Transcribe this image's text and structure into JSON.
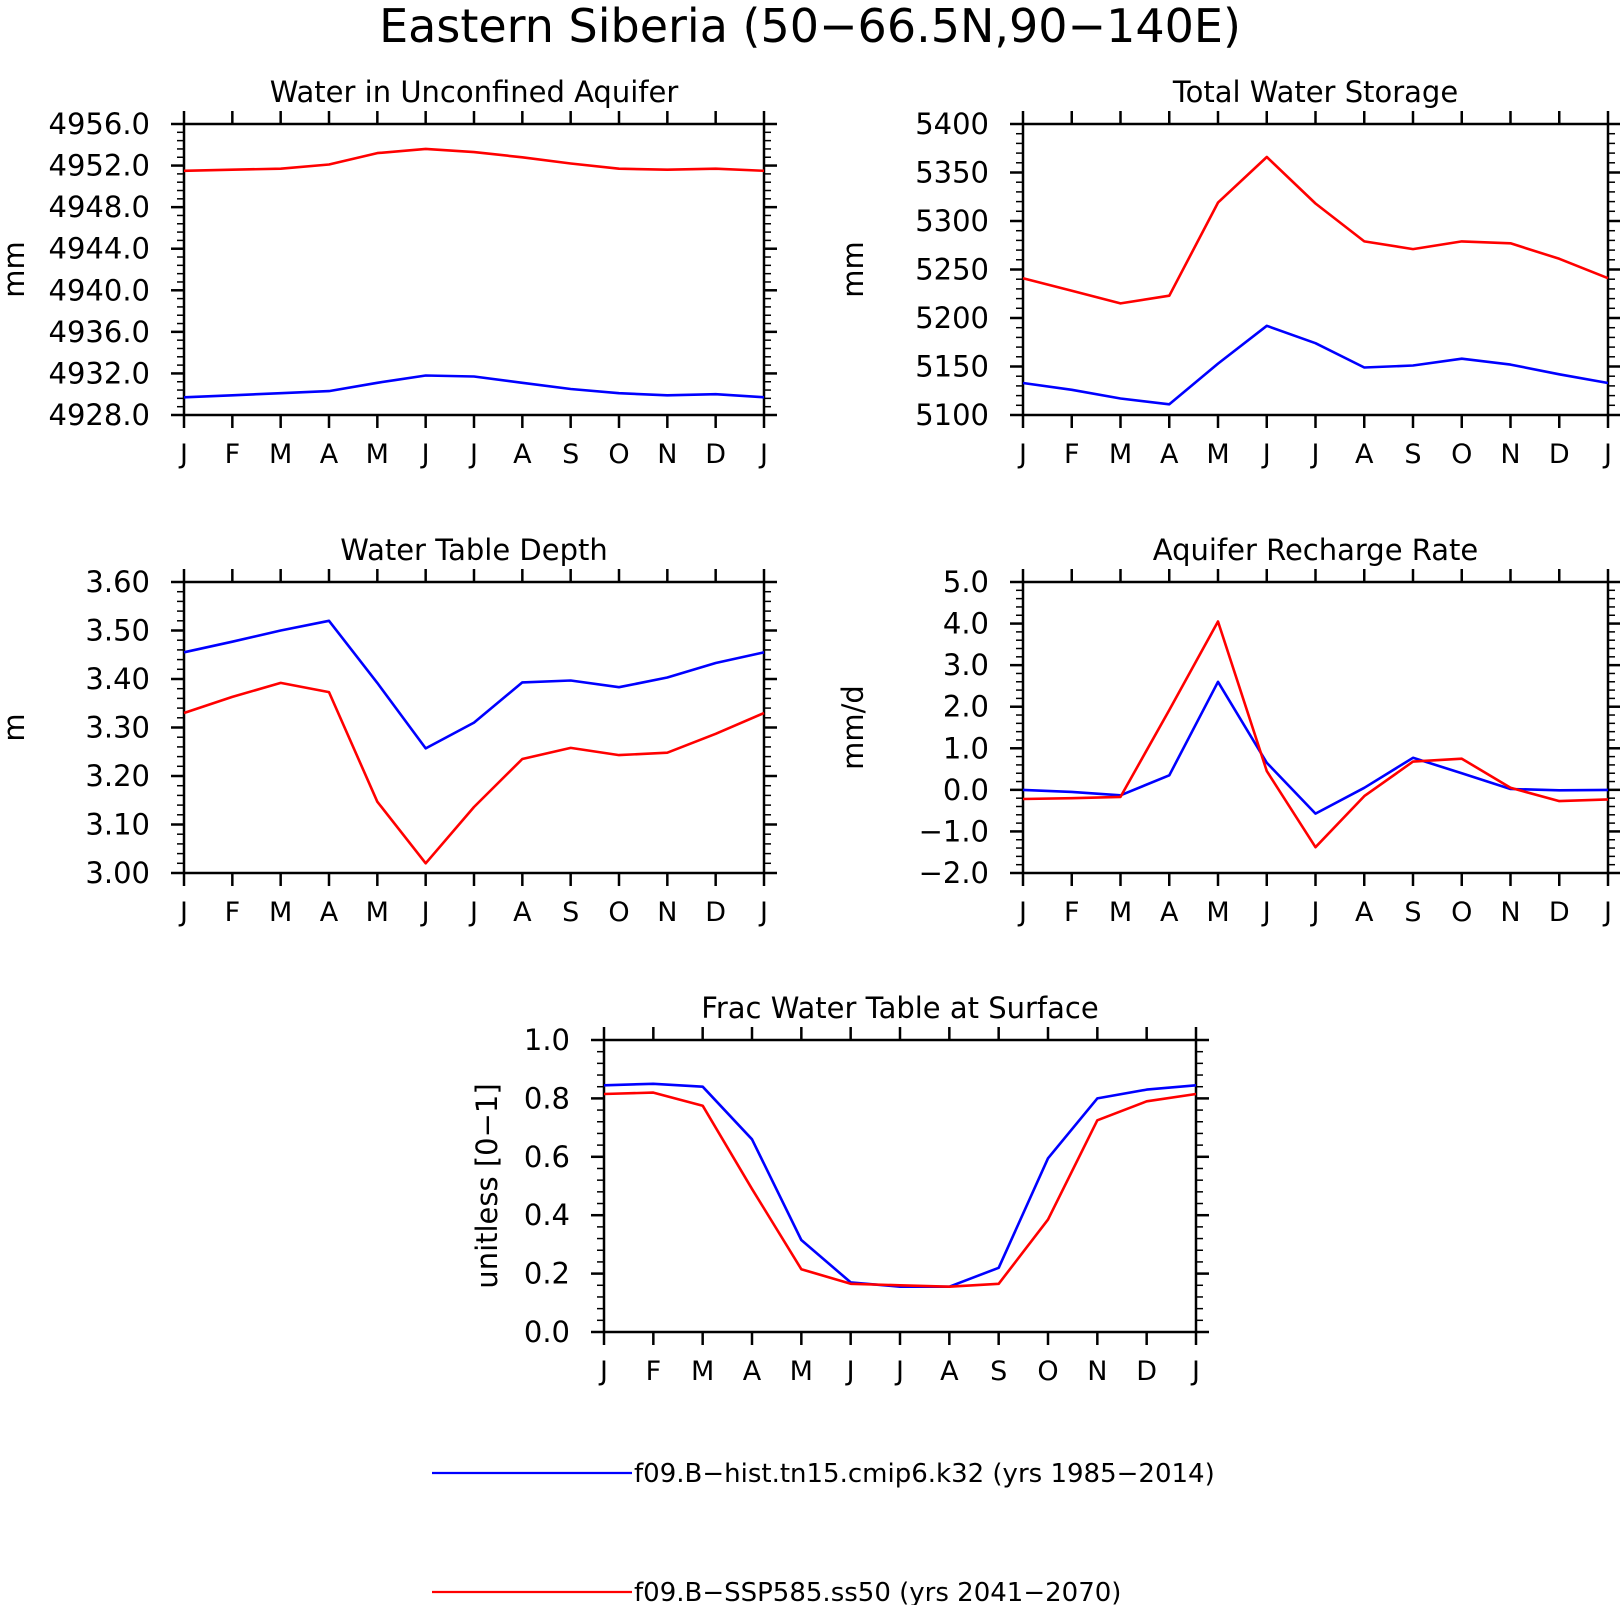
{
  "figure": {
    "title": "Eastern Siberia (50−66.5N,90−140E)"
  },
  "legend": [
    {
      "label": "f09.B−hist.tn15.cmip6.k32 (yrs 1985−2014)",
      "color": "#0000ff"
    },
    {
      "label": "f09.B−SSP585.ss50 (yrs 2041−2070)",
      "color": "#ff0000"
    }
  ],
  "chart_data": [
    {
      "type": "line",
      "title": "Water in Unconfined Aquifer",
      "ylabel": "mm",
      "categories": [
        "J",
        "F",
        "M",
        "A",
        "M",
        "J",
        "J",
        "A",
        "S",
        "O",
        "N",
        "D",
        "J"
      ],
      "ylim": [
        4928.0,
        4956.0
      ],
      "yticks": [
        "4928.0",
        "4932.0",
        "4936.0",
        "4940.0",
        "4944.0",
        "4948.0",
        "4952.0",
        "4956.0"
      ],
      "series": [
        {
          "color": "#0000ff",
          "values": [
            4929.7,
            4929.9,
            4930.1,
            4930.3,
            4931.1,
            4931.8,
            4931.7,
            4931.1,
            4930.5,
            4930.1,
            4929.9,
            4930.0,
            4929.7
          ]
        },
        {
          "color": "#ff0000",
          "values": [
            4951.5,
            4951.6,
            4951.7,
            4952.1,
            4953.2,
            4953.6,
            4953.3,
            4952.8,
            4952.2,
            4951.7,
            4951.6,
            4951.7,
            4951.5
          ]
        }
      ]
    },
    {
      "type": "line",
      "title": "Total Water Storage",
      "ylabel": "mm",
      "categories": [
        "J",
        "F",
        "M",
        "A",
        "M",
        "J",
        "J",
        "A",
        "S",
        "O",
        "N",
        "D",
        "J"
      ],
      "ylim": [
        5100,
        5400
      ],
      "yticks": [
        "5100",
        "5150",
        "5200",
        "5250",
        "5300",
        "5350",
        "5400"
      ],
      "series": [
        {
          "color": "#0000ff",
          "values": [
            5133,
            5126,
            5117,
            5111,
            5153,
            5192,
            5174,
            5149,
            5151,
            5158,
            5152,
            5142,
            5133
          ]
        },
        {
          "color": "#ff0000",
          "values": [
            5241,
            5228,
            5215,
            5223,
            5319,
            5366,
            5318,
            5279,
            5271,
            5279,
            5277,
            5261,
            5241
          ]
        }
      ]
    },
    {
      "type": "line",
      "title": "Water Table Depth",
      "ylabel": "m",
      "categories": [
        "J",
        "F",
        "M",
        "A",
        "M",
        "J",
        "J",
        "A",
        "S",
        "O",
        "N",
        "D",
        "J"
      ],
      "ylim": [
        3.0,
        3.6
      ],
      "yticks": [
        "3.00",
        "3.10",
        "3.20",
        "3.30",
        "3.40",
        "3.50",
        "3.60"
      ],
      "series": [
        {
          "color": "#0000ff",
          "values": [
            3.455,
            3.477,
            3.5,
            3.52,
            3.392,
            3.257,
            3.31,
            3.393,
            3.397,
            3.383,
            3.403,
            3.433,
            3.455
          ]
        },
        {
          "color": "#ff0000",
          "values": [
            3.33,
            3.363,
            3.392,
            3.373,
            3.147,
            3.02,
            3.136,
            3.235,
            3.258,
            3.243,
            3.248,
            3.287,
            3.33
          ]
        }
      ]
    },
    {
      "type": "line",
      "title": "Aquifer Recharge Rate",
      "ylabel": "mm/d",
      "categories": [
        "J",
        "F",
        "M",
        "A",
        "M",
        "J",
        "J",
        "A",
        "S",
        "O",
        "N",
        "D",
        "J"
      ],
      "ylim": [
        -2.0,
        5.0
      ],
      "yticks": [
        "−2.0",
        "−1.0",
        "0.0",
        "1.0",
        "2.0",
        "3.0",
        "4.0",
        "5.0"
      ],
      "series": [
        {
          "color": "#0000ff",
          "values": [
            0.0,
            -0.05,
            -0.13,
            0.35,
            2.6,
            0.65,
            -0.57,
            0.05,
            0.77,
            0.4,
            0.02,
            -0.01,
            0.0
          ]
        },
        {
          "color": "#ff0000",
          "values": [
            -0.22,
            -0.2,
            -0.17,
            1.92,
            4.05,
            0.45,
            -1.38,
            -0.15,
            0.68,
            0.75,
            0.05,
            -0.27,
            -0.23
          ]
        }
      ]
    },
    {
      "type": "line",
      "title": "Frac Water Table at Surface",
      "ylabel": "unitless [0−1]",
      "categories": [
        "J",
        "F",
        "M",
        "A",
        "M",
        "J",
        "J",
        "A",
        "S",
        "O",
        "N",
        "D",
        "J"
      ],
      "ylim": [
        0.0,
        1.0
      ],
      "yticks": [
        "0.0",
        "0.2",
        "0.4",
        "0.6",
        "0.8",
        "1.0"
      ],
      "series": [
        {
          "color": "#0000ff",
          "values": [
            0.845,
            0.85,
            0.84,
            0.66,
            0.315,
            0.17,
            0.155,
            0.155,
            0.22,
            0.595,
            0.8,
            0.83,
            0.845
          ]
        },
        {
          "color": "#ff0000",
          "values": [
            0.815,
            0.82,
            0.775,
            0.49,
            0.215,
            0.165,
            0.16,
            0.155,
            0.165,
            0.385,
            0.725,
            0.79,
            0.815
          ]
        }
      ]
    }
  ]
}
